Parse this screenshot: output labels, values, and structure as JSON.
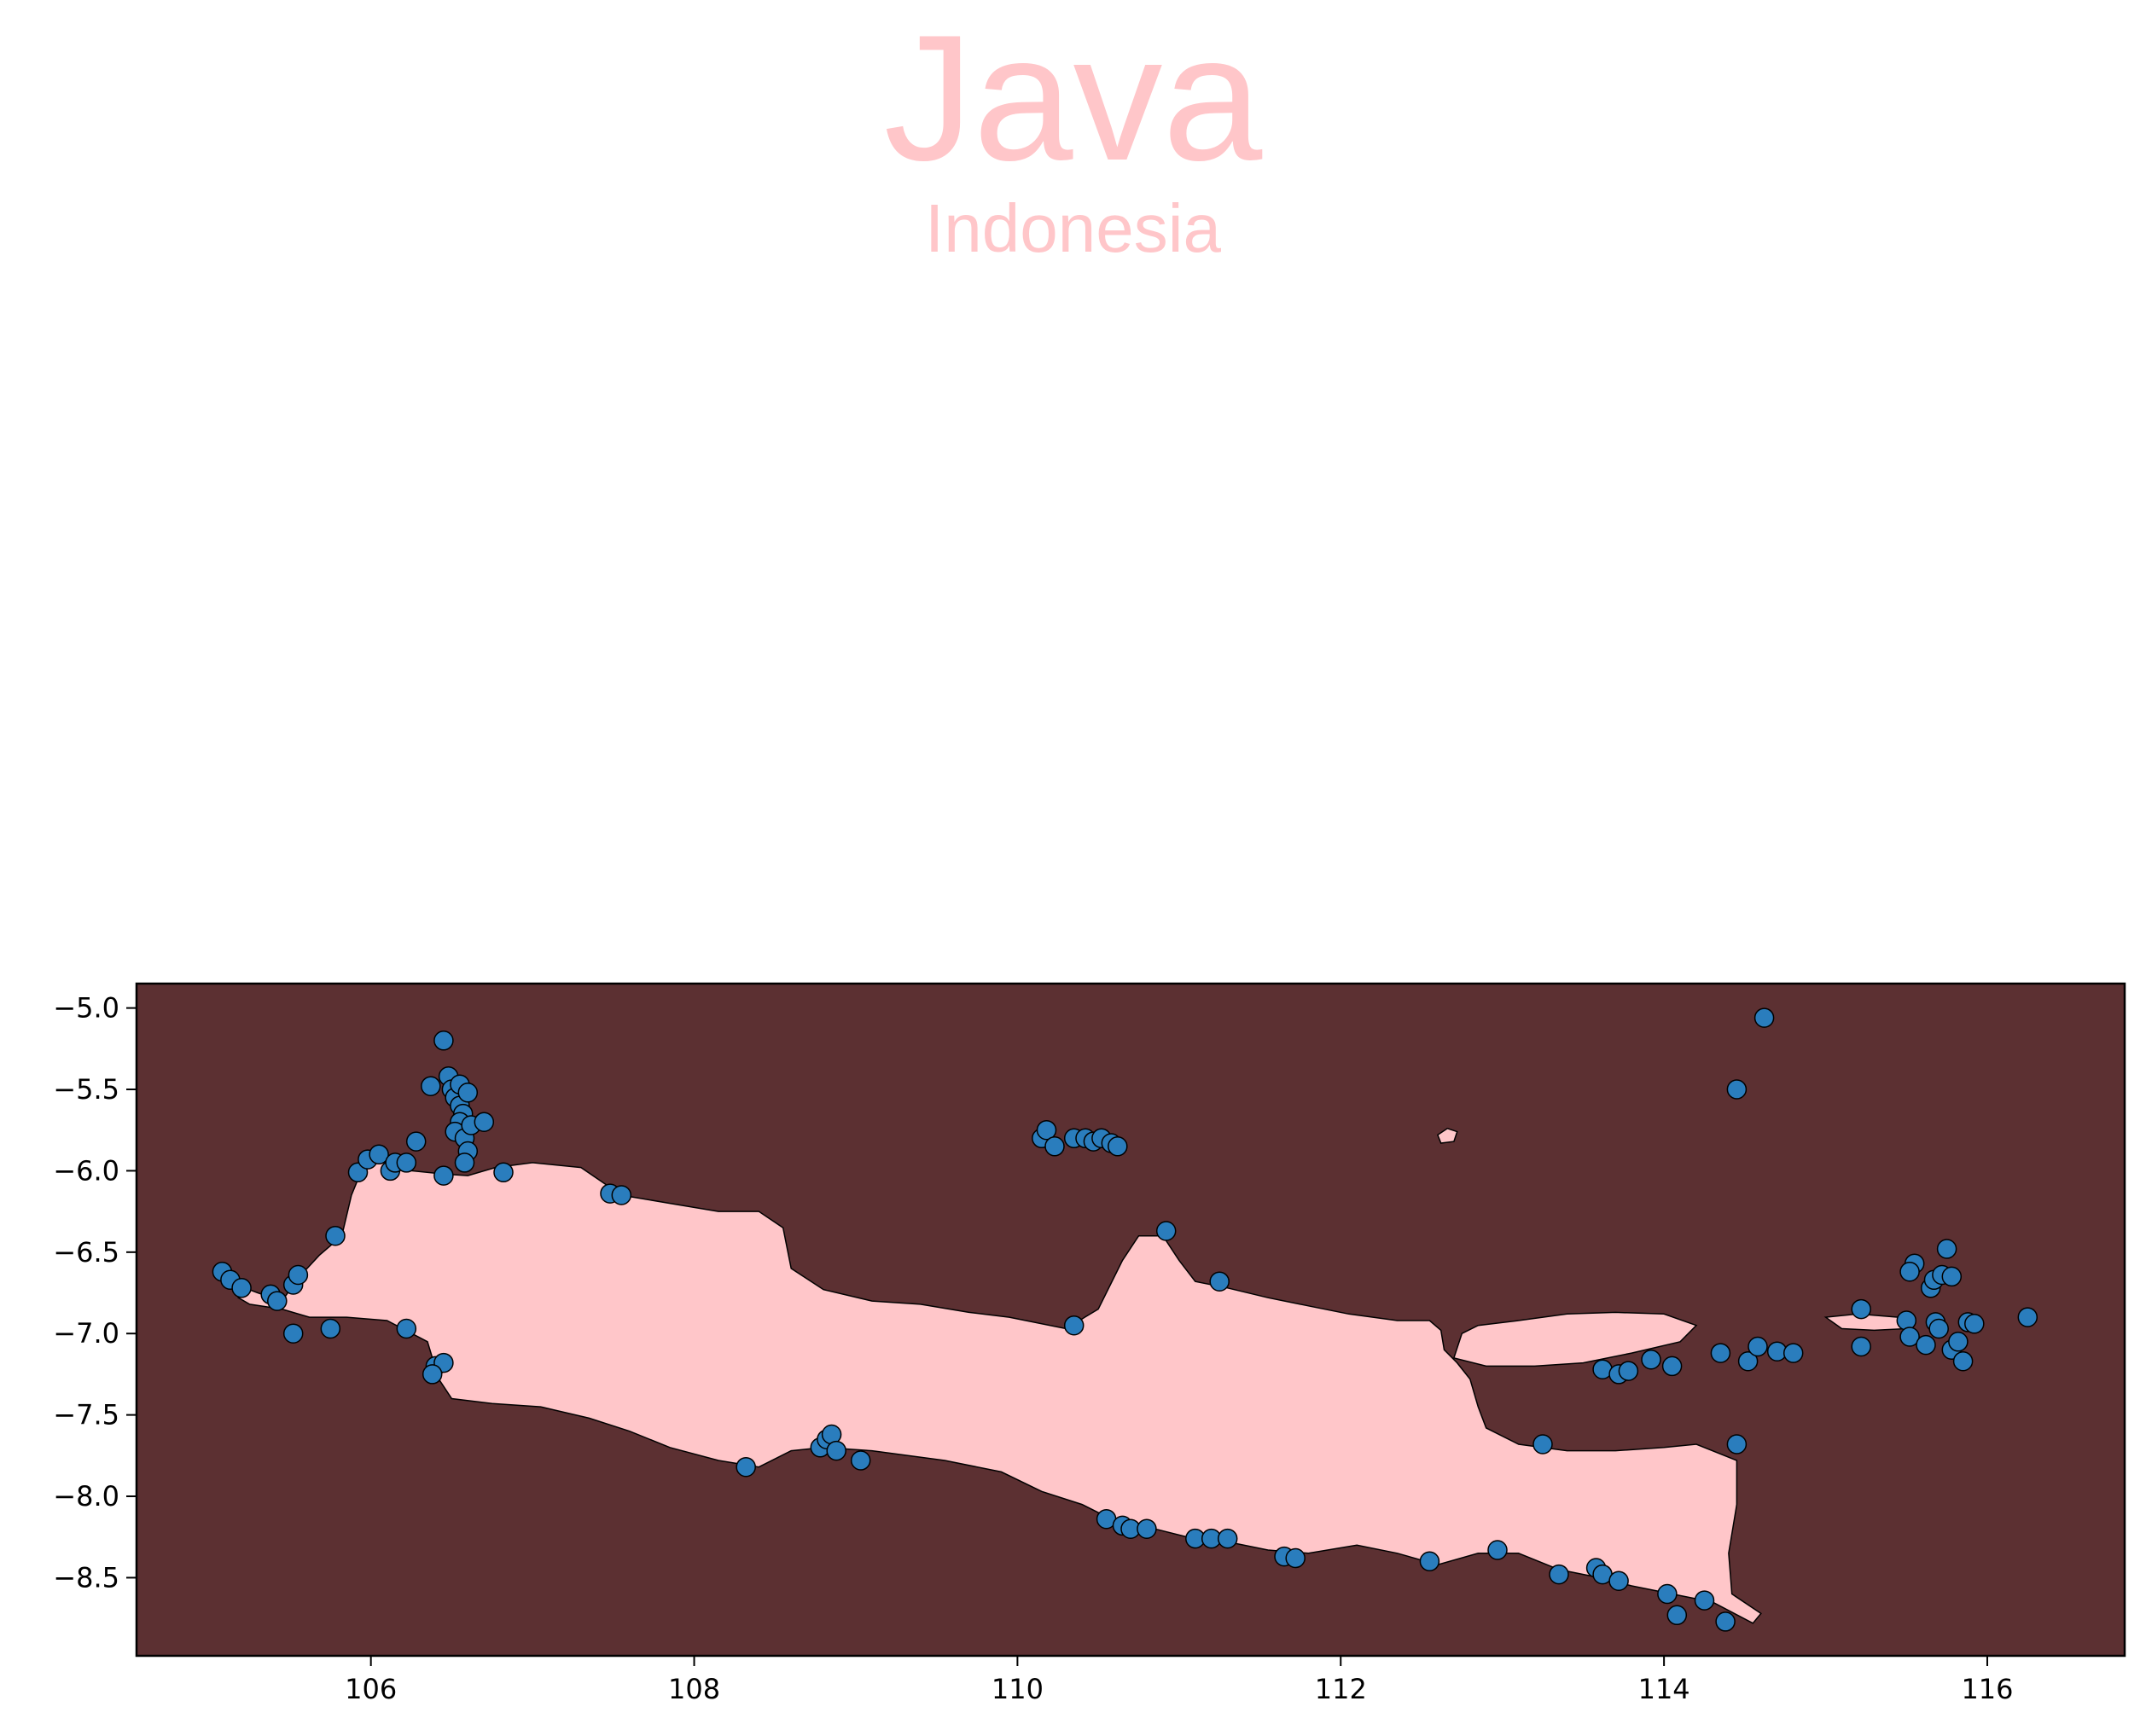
{
  "map": {
    "title": "Java",
    "subtitle": "Indonesia",
    "colors": {
      "sea": "#5c3032",
      "land": "#ffc6c9",
      "title": "#ffc6c9",
      "point_fill": "#2a7dbd",
      "point_edge": "#000000"
    },
    "x_ticks": [
      "106",
      "108",
      "110",
      "112",
      "114",
      "116"
    ],
    "y_ticks": [
      "−5.0",
      "−5.5",
      "−6.0",
      "−6.5",
      "−7.0",
      "−7.5",
      "−8.0",
      "−8.5"
    ]
  },
  "chart_data": {
    "type": "scatter",
    "xlim": [
      104.55,
      116.85
    ],
    "ylim": [
      -8.98,
      -4.85
    ],
    "grid": false,
    "x_ticks": [
      106,
      108,
      110,
      112,
      114,
      116
    ],
    "y_ticks": [
      -5.0,
      -5.5,
      -6.0,
      -6.5,
      -7.0,
      -7.5,
      -8.0,
      -8.5
    ],
    "java_outline": [
      [
        105.18,
        -6.78
      ],
      [
        105.22,
        -6.72
      ],
      [
        105.3,
        -6.75
      ],
      [
        105.45,
        -6.8
      ],
      [
        105.55,
        -6.66
      ],
      [
        105.68,
        -6.52
      ],
      [
        105.82,
        -6.4
      ],
      [
        105.88,
        -6.15
      ],
      [
        105.95,
        -5.98
      ],
      [
        106.05,
        -5.93
      ],
      [
        106.25,
        -6.0
      ],
      [
        106.45,
        -6.02
      ],
      [
        106.6,
        -6.03
      ],
      [
        106.77,
        -5.98
      ],
      [
        107.0,
        -5.95
      ],
      [
        107.3,
        -5.98
      ],
      [
        107.55,
        -6.15
      ],
      [
        107.85,
        -6.2
      ],
      [
        108.15,
        -6.25
      ],
      [
        108.4,
        -6.25
      ],
      [
        108.55,
        -6.35
      ],
      [
        108.6,
        -6.6
      ],
      [
        108.8,
        -6.73
      ],
      [
        109.1,
        -6.8
      ],
      [
        109.4,
        -6.82
      ],
      [
        109.7,
        -6.87
      ],
      [
        109.95,
        -6.9
      ],
      [
        110.3,
        -6.97
      ],
      [
        110.5,
        -6.85
      ],
      [
        110.65,
        -6.55
      ],
      [
        110.75,
        -6.4
      ],
      [
        110.9,
        -6.4
      ],
      [
        111.0,
        -6.55
      ],
      [
        111.1,
        -6.68
      ],
      [
        111.3,
        -6.72
      ],
      [
        111.55,
        -6.78
      ],
      [
        111.8,
        -6.83
      ],
      [
        112.05,
        -6.88
      ],
      [
        112.35,
        -6.92
      ],
      [
        112.55,
        -6.92
      ],
      [
        112.62,
        -6.98
      ],
      [
        112.64,
        -7.1
      ],
      [
        112.72,
        -7.18
      ],
      [
        112.8,
        -7.28
      ],
      [
        112.85,
        -7.45
      ],
      [
        112.9,
        -7.58
      ],
      [
        113.1,
        -7.68
      ],
      [
        113.4,
        -7.72
      ],
      [
        113.7,
        -7.72
      ],
      [
        114.0,
        -7.7
      ],
      [
        114.2,
        -7.68
      ],
      [
        114.45,
        -7.78
      ],
      [
        114.45,
        -8.05
      ],
      [
        114.4,
        -8.35
      ],
      [
        114.42,
        -8.6
      ],
      [
        114.6,
        -8.72
      ],
      [
        114.55,
        -8.78
      ],
      [
        114.3,
        -8.65
      ],
      [
        114.05,
        -8.6
      ],
      [
        113.8,
        -8.55
      ],
      [
        113.6,
        -8.5
      ],
      [
        113.35,
        -8.45
      ],
      [
        113.1,
        -8.35
      ],
      [
        112.85,
        -8.35
      ],
      [
        112.6,
        -8.42
      ],
      [
        112.35,
        -8.35
      ],
      [
        112.1,
        -8.3
      ],
      [
        111.8,
        -8.35
      ],
      [
        111.55,
        -8.33
      ],
      [
        111.3,
        -8.28
      ],
      [
        111.05,
        -8.25
      ],
      [
        110.85,
        -8.2
      ],
      [
        110.6,
        -8.15
      ],
      [
        110.4,
        -8.05
      ],
      [
        110.15,
        -7.97
      ],
      [
        109.9,
        -7.85
      ],
      [
        109.55,
        -7.78
      ],
      [
        109.1,
        -7.72
      ],
      [
        108.8,
        -7.7
      ],
      [
        108.6,
        -7.72
      ],
      [
        108.4,
        -7.82
      ],
      [
        108.15,
        -7.78
      ],
      [
        107.85,
        -7.7
      ],
      [
        107.6,
        -7.6
      ],
      [
        107.35,
        -7.52
      ],
      [
        107.05,
        -7.45
      ],
      [
        106.75,
        -7.43
      ],
      [
        106.5,
        -7.4
      ],
      [
        106.42,
        -7.28
      ],
      [
        106.35,
        -7.05
      ],
      [
        106.1,
        -6.92
      ],
      [
        105.85,
        -6.9
      ],
      [
        105.62,
        -6.9
      ],
      [
        105.45,
        -6.85
      ],
      [
        105.25,
        -6.82
      ]
    ],
    "madura_outline": [
      [
        112.7,
        -7.15
      ],
      [
        112.75,
        -7.0
      ],
      [
        112.85,
        -6.95
      ],
      [
        113.1,
        -6.92
      ],
      [
        113.4,
        -6.88
      ],
      [
        113.7,
        -6.87
      ],
      [
        114.0,
        -6.88
      ],
      [
        114.2,
        -6.95
      ],
      [
        114.1,
        -7.05
      ],
      [
        113.8,
        -7.12
      ],
      [
        113.5,
        -7.18
      ],
      [
        113.2,
        -7.2
      ],
      [
        112.9,
        -7.2
      ]
    ],
    "islet_outline": [
      [
        112.6,
        -5.78
      ],
      [
        112.66,
        -5.74
      ],
      [
        112.72,
        -5.76
      ],
      [
        112.7,
        -5.82
      ],
      [
        112.62,
        -5.83
      ]
    ],
    "bawean_outline": [
      [
        115.0,
        -6.9
      ],
      [
        115.2,
        -6.88
      ],
      [
        115.45,
        -6.9
      ],
      [
        115.5,
        -6.97
      ],
      [
        115.3,
        -6.98
      ],
      [
        115.1,
        -6.97
      ]
    ],
    "series": [
      {
        "points": [
          [
            105.08,
            -6.62
          ],
          [
            105.13,
            -6.67
          ],
          [
            105.2,
            -6.72
          ],
          [
            105.38,
            -6.76
          ],
          [
            105.42,
            -6.8
          ],
          [
            105.52,
            -6.7
          ],
          [
            105.55,
            -6.64
          ],
          [
            105.78,
            -6.4
          ],
          [
            105.52,
            -7.0
          ],
          [
            105.75,
            -6.97
          ],
          [
            105.92,
            -6.01
          ],
          [
            105.98,
            -5.93
          ],
          [
            106.05,
            -5.9
          ],
          [
            106.12,
            -6.0
          ],
          [
            106.15,
            -5.95
          ],
          [
            106.22,
            -5.95
          ],
          [
            106.28,
            -5.82
          ],
          [
            106.22,
            -6.97
          ],
          [
            106.4,
            -7.2
          ],
          [
            106.45,
            -7.18
          ],
          [
            106.38,
            -7.25
          ],
          [
            106.37,
            -5.48
          ],
          [
            106.45,
            -5.2
          ],
          [
            106.48,
            -5.42
          ],
          [
            106.5,
            -5.5
          ],
          [
            106.52,
            -5.55
          ],
          [
            106.55,
            -5.6
          ],
          [
            106.57,
            -5.65
          ],
          [
            106.55,
            -5.7
          ],
          [
            106.52,
            -5.76
          ],
          [
            106.58,
            -5.8
          ],
          [
            106.6,
            -5.88
          ],
          [
            106.58,
            -5.95
          ],
          [
            106.55,
            -5.47
          ],
          [
            106.6,
            -5.52
          ],
          [
            106.62,
            -5.72
          ],
          [
            106.7,
            -5.7
          ],
          [
            106.45,
            -6.03
          ],
          [
            106.82,
            -6.01
          ],
          [
            107.48,
            -6.14
          ],
          [
            107.55,
            -6.15
          ],
          [
            108.32,
            -7.82
          ],
          [
            108.78,
            -7.7
          ],
          [
            108.82,
            -7.65
          ],
          [
            108.85,
            -7.62
          ],
          [
            108.88,
            -7.72
          ],
          [
            109.03,
            -7.78
          ],
          [
            110.15,
            -5.8
          ],
          [
            110.18,
            -5.75
          ],
          [
            110.23,
            -5.85
          ],
          [
            110.35,
            -5.8
          ],
          [
            110.42,
            -5.8
          ],
          [
            110.47,
            -5.82
          ],
          [
            110.52,
            -5.8
          ],
          [
            110.58,
            -5.83
          ],
          [
            110.62,
            -5.85
          ],
          [
            110.35,
            -6.95
          ],
          [
            110.92,
            -6.37
          ],
          [
            111.25,
            -6.68
          ],
          [
            110.55,
            -8.14
          ],
          [
            110.65,
            -8.18
          ],
          [
            110.7,
            -8.2
          ],
          [
            110.8,
            -8.2
          ],
          [
            111.1,
            -8.26
          ],
          [
            111.2,
            -8.26
          ],
          [
            111.3,
            -8.26
          ],
          [
            111.65,
            -8.37
          ],
          [
            111.72,
            -8.38
          ],
          [
            112.55,
            -8.4
          ],
          [
            112.97,
            -8.33
          ],
          [
            113.25,
            -7.68
          ],
          [
            113.35,
            -8.48
          ],
          [
            113.58,
            -8.44
          ],
          [
            113.62,
            -8.48
          ],
          [
            113.72,
            -8.52
          ],
          [
            113.62,
            -7.22
          ],
          [
            113.72,
            -7.25
          ],
          [
            113.78,
            -7.23
          ],
          [
            113.92,
            -7.16
          ],
          [
            114.05,
            -7.2
          ],
          [
            114.02,
            -8.6
          ],
          [
            114.08,
            -8.73
          ],
          [
            114.25,
            -8.64
          ],
          [
            114.38,
            -8.77
          ],
          [
            114.35,
            -7.12
          ],
          [
            114.52,
            -7.17
          ],
          [
            114.58,
            -7.08
          ],
          [
            114.7,
            -7.11
          ],
          [
            114.8,
            -7.12
          ],
          [
            114.45,
            -7.68
          ],
          [
            114.45,
            -5.5
          ],
          [
            114.62,
            -5.06
          ],
          [
            115.22,
            -6.85
          ],
          [
            115.22,
            -7.08
          ],
          [
            115.5,
            -6.92
          ],
          [
            115.52,
            -7.02
          ],
          [
            115.55,
            -6.57
          ],
          [
            115.52,
            -6.62
          ],
          [
            115.62,
            -7.07
          ],
          [
            115.65,
            -6.72
          ],
          [
            115.67,
            -6.67
          ],
          [
            115.68,
            -6.93
          ],
          [
            115.7,
            -6.97
          ],
          [
            115.72,
            -6.64
          ],
          [
            115.75,
            -6.48
          ],
          [
            115.78,
            -6.65
          ],
          [
            115.78,
            -7.1
          ],
          [
            115.82,
            -7.05
          ],
          [
            115.85,
            -7.17
          ],
          [
            115.88,
            -6.93
          ],
          [
            115.92,
            -6.94
          ],
          [
            116.25,
            -6.9
          ]
        ]
      }
    ]
  }
}
